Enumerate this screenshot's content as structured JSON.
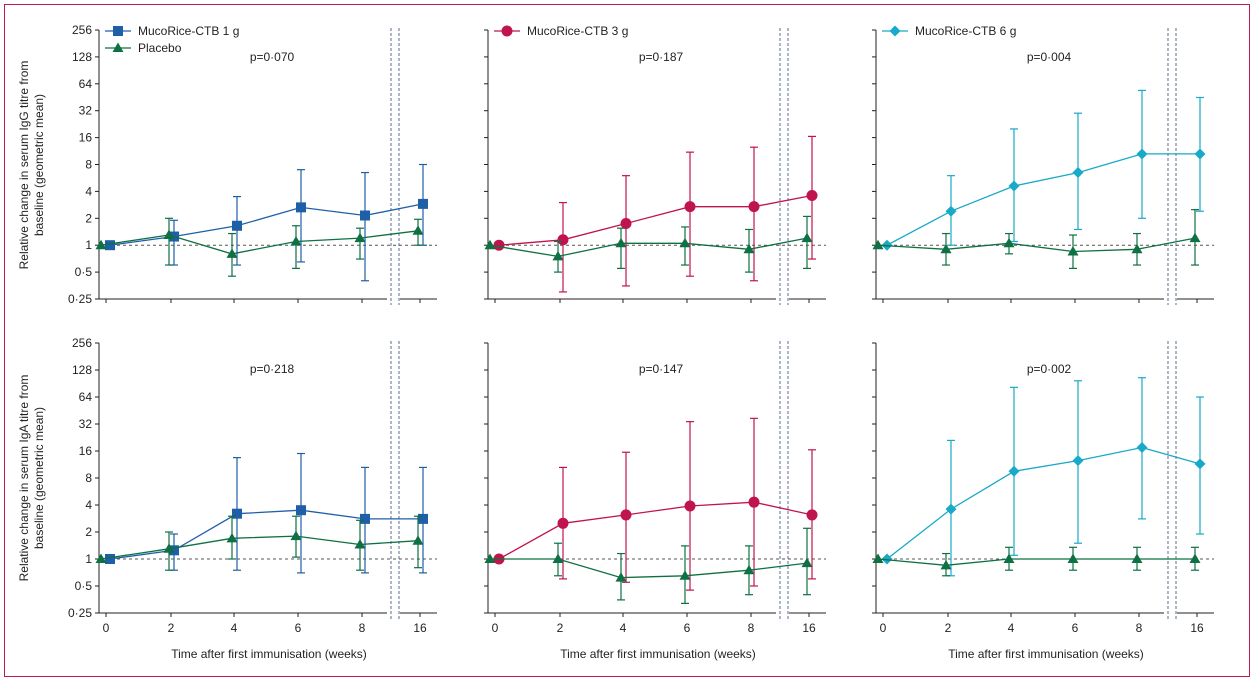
{
  "colors": {
    "frame": "#c2185b",
    "axis": "#231f20",
    "placebo": "#0e7043",
    "dose1": "#1f5fa8",
    "dose3": "#c0144d",
    "dose6": "#19a9c9",
    "dash": "#7f8fa6"
  },
  "labels": {
    "ylabel_igg": [
      "Relative change in serum IgG titre from",
      "baseline (geometric mean)"
    ],
    "ylabel_iga": [
      "Relative change in serum IgA titre from",
      "baseline (geometric mean)"
    ],
    "xlabel": "Time after first immunisation (weeks)"
  },
  "chart_data": {
    "type": "line",
    "y_scale": "log2",
    "ylim": [
      0.25,
      256
    ],
    "y_ticks": [
      0.25,
      0.5,
      1,
      2,
      4,
      8,
      16,
      32,
      64,
      128,
      256
    ],
    "y_tick_labels": [
      "0·25",
      "0·5",
      "1",
      "2",
      "4",
      "8",
      "16",
      "32",
      "64",
      "128",
      "256"
    ],
    "x_ticks": [
      0,
      2,
      4,
      6,
      8,
      16
    ],
    "x_tick_labels": [
      "0",
      "2",
      "4",
      "6",
      "8",
      "16"
    ],
    "reference_line": 1,
    "axis_break": "between 8 and 16 weeks",
    "panels": [
      {
        "id": "igg-1g",
        "row": "IgG",
        "group": "dose1",
        "p_value": "p=0·070",
        "legend": [
          {
            "name": "MucoRice-CTB 1 g",
            "marker": "square",
            "group": "dose1"
          },
          {
            "name": "Placebo",
            "marker": "triangle",
            "group": "placebo"
          }
        ],
        "series": [
          {
            "name": "MucoRice-CTB 1 g",
            "group": "dose1",
            "marker": "square",
            "x": [
              0,
              2,
              4,
              6,
              8,
              16
            ],
            "y": [
              1.0,
              1.25,
              1.65,
              2.65,
              2.15,
              2.9
            ],
            "lower": [
              1.0,
              0.6,
              0.6,
              0.65,
              0.4,
              1.0
            ],
            "upper": [
              1.0,
              1.9,
              3.5,
              7.0,
              6.5,
              8.0
            ]
          },
          {
            "name": "Placebo",
            "group": "placebo",
            "marker": "triangle",
            "x": [
              0,
              2,
              4,
              6,
              8,
              16
            ],
            "y": [
              1.0,
              1.3,
              0.8,
              1.1,
              1.2,
              1.45
            ],
            "lower": [
              1.0,
              0.6,
              0.45,
              0.55,
              0.7,
              1.0
            ],
            "upper": [
              1.0,
              2.0,
              1.35,
              1.65,
              1.55,
              1.95
            ]
          }
        ]
      },
      {
        "id": "igg-3g",
        "row": "IgG",
        "group": "dose3",
        "p_value": "p=0·187",
        "legend": [
          {
            "name": "MucoRice-CTB 3 g",
            "marker": "circle",
            "group": "dose3"
          }
        ],
        "series": [
          {
            "name": "MucoRice-CTB 3 g",
            "group": "dose3",
            "marker": "circle",
            "x": [
              0,
              2,
              4,
              6,
              8,
              16
            ],
            "y": [
              1.0,
              1.15,
              1.75,
              2.7,
              2.7,
              3.6
            ],
            "lower": [
              1.0,
              0.3,
              0.35,
              0.45,
              0.4,
              0.7
            ],
            "upper": [
              1.0,
              3.0,
              6.0,
              11.0,
              12.5,
              16.5
            ]
          },
          {
            "name": "Placebo",
            "group": "placebo",
            "marker": "triangle",
            "x": [
              0,
              2,
              4,
              6,
              8,
              16
            ],
            "y": [
              1.0,
              0.75,
              1.05,
              1.05,
              0.9,
              1.2
            ],
            "lower": [
              1.0,
              0.5,
              0.55,
              0.6,
              0.5,
              0.55
            ],
            "upper": [
              1.0,
              1.1,
              1.55,
              1.6,
              1.5,
              2.1
            ]
          }
        ]
      },
      {
        "id": "igg-6g",
        "row": "IgG",
        "group": "dose6",
        "p_value": "p=0·004",
        "legend": [
          {
            "name": "MucoRice-CTB 6 g",
            "marker": "diamond",
            "group": "dose6"
          }
        ],
        "series": [
          {
            "name": "MucoRice-CTB 6 g",
            "group": "dose6",
            "marker": "diamond",
            "x": [
              0,
              2,
              4,
              6,
              8,
              16
            ],
            "y": [
              1.0,
              2.4,
              4.6,
              6.5,
              10.5,
              10.5
            ],
            "lower": [
              1.0,
              1.0,
              1.1,
              1.5,
              2.0,
              2.4
            ],
            "upper": [
              1.0,
              6.0,
              20.0,
              30.0,
              54.0,
              45.0
            ]
          },
          {
            "name": "Placebo",
            "group": "placebo",
            "marker": "triangle",
            "x": [
              0,
              2,
              4,
              6,
              8,
              16
            ],
            "y": [
              1.0,
              0.9,
              1.05,
              0.85,
              0.9,
              1.2
            ],
            "lower": [
              1.0,
              0.6,
              0.8,
              0.55,
              0.6,
              0.6
            ],
            "upper": [
              1.0,
              1.35,
              1.35,
              1.3,
              1.35,
              2.5
            ]
          }
        ]
      },
      {
        "id": "iga-1g",
        "row": "IgA",
        "group": "dose1",
        "p_value": "p=0·218",
        "legend": [],
        "series": [
          {
            "name": "MucoRice-CTB 1 g",
            "group": "dose1",
            "marker": "square",
            "x": [
              0,
              2,
              4,
              6,
              8,
              16
            ],
            "y": [
              1.0,
              1.25,
              3.2,
              3.5,
              2.8,
              2.8
            ],
            "lower": [
              1.0,
              0.75,
              0.75,
              0.7,
              0.7,
              0.7
            ],
            "upper": [
              1.0,
              1.9,
              13.5,
              15.0,
              10.5,
              10.5
            ]
          },
          {
            "name": "Placebo",
            "group": "placebo",
            "marker": "triangle",
            "x": [
              0,
              2,
              4,
              6,
              8,
              16
            ],
            "y": [
              1.0,
              1.3,
              1.7,
              1.8,
              1.45,
              1.6
            ],
            "lower": [
              1.0,
              0.75,
              1.0,
              1.05,
              0.75,
              0.8
            ],
            "upper": [
              1.0,
              2.0,
              3.0,
              3.0,
              2.7,
              3.0
            ]
          }
        ]
      },
      {
        "id": "iga-3g",
        "row": "IgA",
        "group": "dose3",
        "p_value": "p=0·147",
        "legend": [],
        "series": [
          {
            "name": "MucoRice-CTB 3 g",
            "group": "dose3",
            "marker": "circle",
            "x": [
              0,
              2,
              4,
              6,
              8,
              16
            ],
            "y": [
              1.0,
              2.5,
              3.1,
              3.9,
              4.3,
              3.1
            ],
            "lower": [
              1.0,
              0.6,
              0.55,
              0.45,
              0.5,
              0.6
            ],
            "upper": [
              1.0,
              10.5,
              15.5,
              34.0,
              37.0,
              16.5
            ]
          },
          {
            "name": "Placebo",
            "group": "placebo",
            "marker": "triangle",
            "x": [
              0,
              2,
              4,
              6,
              8,
              16
            ],
            "y": [
              1.0,
              1.0,
              0.62,
              0.65,
              0.75,
              0.9
            ],
            "lower": [
              1.0,
              0.65,
              0.35,
              0.32,
              0.4,
              0.4
            ],
            "upper": [
              1.0,
              1.5,
              1.15,
              1.4,
              1.4,
              2.2
            ]
          }
        ]
      },
      {
        "id": "iga-6g",
        "row": "IgA",
        "group": "dose6",
        "p_value": "p=0·002",
        "legend": [],
        "series": [
          {
            "name": "MucoRice-CTB 6 g",
            "group": "dose6",
            "marker": "diamond",
            "x": [
              0,
              2,
              4,
              6,
              8,
              16
            ],
            "y": [
              1.0,
              3.6,
              9.5,
              12.5,
              17.5,
              11.5
            ],
            "lower": [
              1.0,
              0.65,
              1.1,
              1.5,
              2.8,
              1.9
            ],
            "upper": [
              1.0,
              21.0,
              82.0,
              97.0,
              105.0,
              64.0
            ]
          },
          {
            "name": "Placebo",
            "group": "placebo",
            "marker": "triangle",
            "x": [
              0,
              2,
              4,
              6,
              8,
              16
            ],
            "y": [
              1.0,
              0.85,
              1.0,
              1.0,
              1.0,
              1.0
            ],
            "lower": [
              1.0,
              0.65,
              0.75,
              0.75,
              0.75,
              0.75
            ],
            "upper": [
              1.0,
              1.15,
              1.35,
              1.35,
              1.35,
              1.35
            ]
          }
        ]
      }
    ]
  }
}
